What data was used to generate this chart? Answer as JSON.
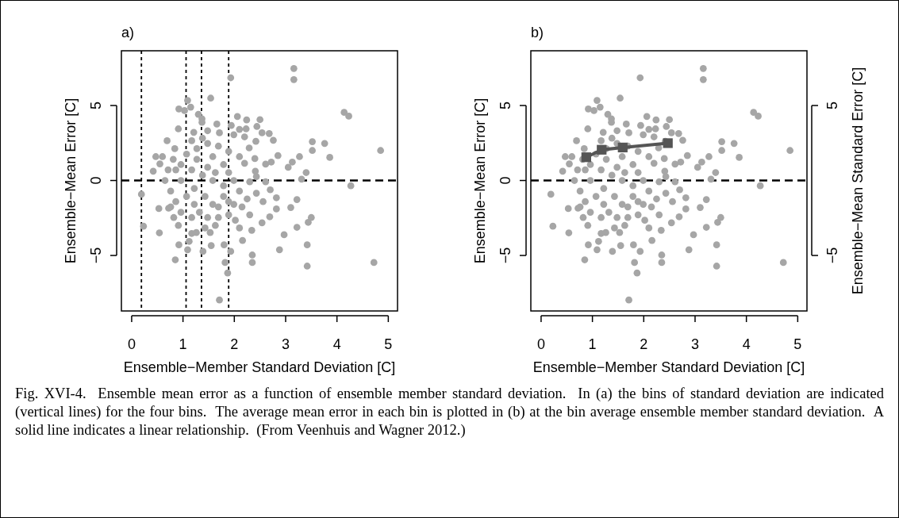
{
  "chart_data": [
    {
      "type": "scatter",
      "title": "a)",
      "xlabel": "Ensemble−Member Standard Deviation [C]",
      "ylabel": "Ensemble−Mean Error [C]",
      "xlim": [
        -0.2,
        5.18
      ],
      "ylim": [
        -8.7,
        8.65
      ],
      "xticks": [
        0,
        1,
        2,
        3,
        4,
        5
      ],
      "yticks": [
        -5,
        0,
        5
      ],
      "marker": "circle",
      "series": [
        {
          "type": "scatter",
          "color": "#a6a6a6",
          "x": [
            3.16,
            3.16,
            1.93,
            1.54,
            1.09,
            1.15,
            0.92,
            1.03,
            1.3,
            1.37,
            1.37,
            4.14,
            4.23,
            2.06,
            2.24,
            2.5,
            2.44,
            1.66,
            1.94,
            2.1,
            2.23,
            2.54,
            2.68,
            2.76,
            0.91,
            1.21,
            1.48,
            1.71,
            1.99,
            2.2,
            3.52,
            3.76,
            3.52,
            4.85,
            3.86,
            2.29,
            2.42,
            0.69,
            0.84,
            0.6,
            0.47,
            0.42,
            0.55,
            2.85,
            2.61,
            2.72,
            2.2,
            2.4,
            2.41,
            3.27,
            3.13,
            3.05,
            3.4,
            3.31,
            4.27,
            0.19,
            0.23,
            0.54,
            0.53,
            0.72,
            0.82,
            0.91,
            0.92,
            0.85,
            1.09,
            1.12,
            1.26,
            1.39,
            1.55,
            1.53,
            1.63,
            1.71,
            1.8,
            1.93,
            1.82,
            1.87,
            2.16,
            2.34,
            2.35,
            2.35,
            2.88,
            2.97,
            3.22,
            3.42,
            3.42,
            3.44,
            3.5,
            3.1,
            3.22,
            4.72,
            2.82,
            2.82,
            2.7,
            2.69,
            2.56,
            2.54,
            2.43,
            2.25,
            2.15,
            2.3,
            2.02,
            2.1,
            1.89,
            1.69,
            1.79,
            2.1,
            2.3,
            2.61,
            2.43,
            0.71,
            0.65,
            0.76,
            0.86,
            0.96,
            1.17,
            1.32,
            1.48,
            1.69,
            1.07,
            1.22,
            1.43,
            1.58,
            1.79,
            1.58,
            1.38,
            1.17,
            0.96,
            0.81,
            1.07,
            1.27,
            1.48,
            1.58,
            1.79,
            1.89,
            1.69,
            1.38,
            1.17,
            0.96,
            0.86,
            1.27,
            1.48,
            1.63,
            1.89,
            1.99,
            2.1,
            0.76,
            1.22,
            1.43,
            1.17,
            1.89,
            1.99
          ],
          "values": [
            7.47,
            6.73,
            6.85,
            5.49,
            5.34,
            4.89,
            4.77,
            4.66,
            4.41,
            4.11,
            3.88,
            4.54,
            4.29,
            4.27,
            4.04,
            4.06,
            3.6,
            3.76,
            3.67,
            3.41,
            3.44,
            3.18,
            3.13,
            2.68,
            3.44,
            3.21,
            3.32,
            3.18,
            3.05,
            2.91,
            2.59,
            2.47,
            2.0,
            2.0,
            1.54,
            2.17,
            2.61,
            2.65,
            2.12,
            1.59,
            1.59,
            0.62,
            1.11,
            1.66,
            1.09,
            1.23,
            1.15,
            1.46,
            0.62,
            1.59,
            1.23,
            0.88,
            0.53,
            0.09,
            -0.35,
            -0.92,
            -3.05,
            -3.49,
            -1.87,
            -1.85,
            -2.47,
            -3.0,
            -4.29,
            -5.29,
            -4.62,
            -4.06,
            -3.47,
            -4.73,
            -4.34,
            -3.47,
            -3.0,
            -7.97,
            -4.29,
            -4.73,
            -5.47,
            -6.17,
            -4.0,
            -3.32,
            -4.97,
            -5.47,
            -4.62,
            -3.62,
            -3.12,
            -4.29,
            -5.71,
            -2.79,
            -2.47,
            -1.8,
            -1.27,
            -5.47,
            -1.9,
            -1.15,
            -0.62,
            -2.42,
            -1.41,
            -2.82,
            -0.85,
            -1.23,
            -1.76,
            -2.29,
            -2.65,
            -3.17,
            -2.29,
            -1.76,
            -1.06,
            -0.71,
            -0.09,
            -0.09,
            0.26,
            0.71,
            0,
            -0.71,
            -1.41,
            -2.12,
            -2.47,
            -2.12,
            -2.47,
            -2.47,
            -1.06,
            -0.53,
            -1.06,
            -1.59,
            -0.35,
            0,
            0.35,
            0.71,
            1.06,
            1.41,
            1.76,
            2.12,
            2.47,
            1.59,
            1.06,
            1.94,
            2.29,
            2.82,
            2.65,
            0,
            0.71,
            1.41,
            0.88,
            0.53,
            0.53,
            0,
            1.59,
            -1.76,
            -1.59,
            -3.17,
            -3.53,
            -1.41,
            -1.59
          ]
        }
      ],
      "ref_lines": [
        {
          "axis": "y",
          "value": 0,
          "line_style": "dashed"
        },
        {
          "axis": "x",
          "value": 0.19,
          "line_style": "dashed"
        },
        {
          "axis": "x",
          "value": 1.06,
          "line_style": "dashed"
        },
        {
          "axis": "x",
          "value": 1.36,
          "line_style": "dashed"
        },
        {
          "axis": "x",
          "value": 1.89,
          "line_style": "dashed"
        }
      ],
      "annotations": [
        "Fig. XVI-4.  Ensemble mean error as a function of ensemble member standard deviation.  In (a) the bins of standard deviation are indicated (vertical lines) for the four bins.  The average mean error in each bin is plotted in (b) at the bin average ensemble member standard deviation.  A solid line indicates a linear relationship.  (From Veenhuis and Wagner 2012.)"
      ]
    },
    {
      "type": "scatter",
      "title": "b)",
      "xlabel": "Ensemble−Member Standard Deviation [C]",
      "ylabel": "Ensemble−Mean Error [C]",
      "y2label": "Ensemble−Mean Standard Error [C]",
      "xlim": [
        -0.2,
        5.18
      ],
      "ylim": [
        -8.7,
        8.65
      ],
      "y2lim": [
        -8.7,
        8.65
      ],
      "xticks": [
        0,
        1,
        2,
        3,
        4,
        5
      ],
      "yticks": [
        -5,
        0,
        5
      ],
      "y2ticks": [
        -5,
        5
      ],
      "marker": "circle",
      "series": [
        {
          "type": "scatter",
          "color": "#a6a6a6",
          "x": [
            3.16,
            3.16,
            1.93,
            1.54,
            1.09,
            1.15,
            0.92,
            1.03,
            1.3,
            1.37,
            1.37,
            4.14,
            4.23,
            2.06,
            2.24,
            2.5,
            2.44,
            1.66,
            1.94,
            2.1,
            2.23,
            2.54,
            2.68,
            2.76,
            0.91,
            1.21,
            1.48,
            1.71,
            1.99,
            2.2,
            3.52,
            3.76,
            3.52,
            4.85,
            3.86,
            2.29,
            2.42,
            0.69,
            0.84,
            0.6,
            0.47,
            0.42,
            0.55,
            2.85,
            2.61,
            2.72,
            2.2,
            2.4,
            2.41,
            3.27,
            3.13,
            3.05,
            3.4,
            3.31,
            4.27,
            0.19,
            0.23,
            0.54,
            0.53,
            0.72,
            0.82,
            0.91,
            0.92,
            0.85,
            1.09,
            1.12,
            1.26,
            1.39,
            1.55,
            1.53,
            1.63,
            1.71,
            1.8,
            1.93,
            1.82,
            1.87,
            2.16,
            2.34,
            2.35,
            2.35,
            2.88,
            2.97,
            3.22,
            3.42,
            3.42,
            3.44,
            3.5,
            3.1,
            3.22,
            4.72,
            2.82,
            2.82,
            2.7,
            2.69,
            2.56,
            2.54,
            2.43,
            2.25,
            2.15,
            2.3,
            2.02,
            2.1,
            1.89,
            1.69,
            1.79,
            2.1,
            2.3,
            2.61,
            2.43,
            0.71,
            0.65,
            0.76,
            0.86,
            0.96,
            1.17,
            1.32,
            1.48,
            1.69,
            1.07,
            1.22,
            1.43,
            1.58,
            1.79,
            1.58,
            1.38,
            1.17,
            0.96,
            0.81,
            1.07,
            1.27,
            1.48,
            1.58,
            1.79,
            1.89,
            1.69,
            1.38,
            1.17,
            0.96,
            0.86,
            1.27,
            1.48,
            1.63,
            1.89,
            1.99,
            2.1,
            0.76,
            1.22,
            1.43,
            1.17,
            1.89,
            1.99
          ],
          "values": [
            7.47,
            6.73,
            6.85,
            5.49,
            5.34,
            4.89,
            4.77,
            4.66,
            4.41,
            4.11,
            3.88,
            4.54,
            4.29,
            4.27,
            4.04,
            4.06,
            3.6,
            3.76,
            3.67,
            3.41,
            3.44,
            3.18,
            3.13,
            2.68,
            3.44,
            3.21,
            3.32,
            3.18,
            3.05,
            2.91,
            2.59,
            2.47,
            2.0,
            2.0,
            1.54,
            2.17,
            2.61,
            2.65,
            2.12,
            1.59,
            1.59,
            0.62,
            1.11,
            1.66,
            1.09,
            1.23,
            1.15,
            1.46,
            0.62,
            1.59,
            1.23,
            0.88,
            0.53,
            0.09,
            -0.35,
            -0.92,
            -3.05,
            -3.49,
            -1.87,
            -1.85,
            -2.47,
            -3.0,
            -4.29,
            -5.29,
            -4.62,
            -4.06,
            -3.47,
            -4.73,
            -4.34,
            -3.47,
            -3.0,
            -7.97,
            -4.29,
            -4.73,
            -5.47,
            -6.17,
            -4.0,
            -3.32,
            -4.97,
            -5.47,
            -4.62,
            -3.62,
            -3.12,
            -4.29,
            -5.71,
            -2.79,
            -2.47,
            -1.8,
            -1.27,
            -5.47,
            -1.9,
            -1.15,
            -0.62,
            -2.42,
            -1.41,
            -2.82,
            -0.85,
            -1.23,
            -1.76,
            -2.29,
            -2.65,
            -3.17,
            -2.29,
            -1.76,
            -1.06,
            -0.71,
            -0.09,
            -0.09,
            0.26,
            0.71,
            0,
            -0.71,
            -1.41,
            -2.12,
            -2.47,
            -2.12,
            -2.47,
            -2.47,
            -1.06,
            -0.53,
            -1.06,
            -1.59,
            -0.35,
            0,
            0.35,
            0.71,
            1.06,
            1.41,
            1.76,
            2.12,
            2.47,
            1.59,
            1.06,
            1.94,
            2.29,
            2.82,
            2.65,
            0,
            0.71,
            1.41,
            0.88,
            0.53,
            0.53,
            0,
            1.59,
            -1.76,
            -1.59,
            -3.17,
            -3.53,
            -1.41,
            -1.59
          ]
        },
        {
          "type": "line",
          "color": "#555555",
          "marker": "square",
          "x": [
            0.88,
            1.18,
            1.59,
            2.47
          ],
          "values": [
            1.55,
            2.05,
            2.2,
            2.49
          ]
        }
      ],
      "ref_lines": [
        {
          "axis": "y",
          "value": 0,
          "line_style": "dashed"
        }
      ]
    }
  ]
}
